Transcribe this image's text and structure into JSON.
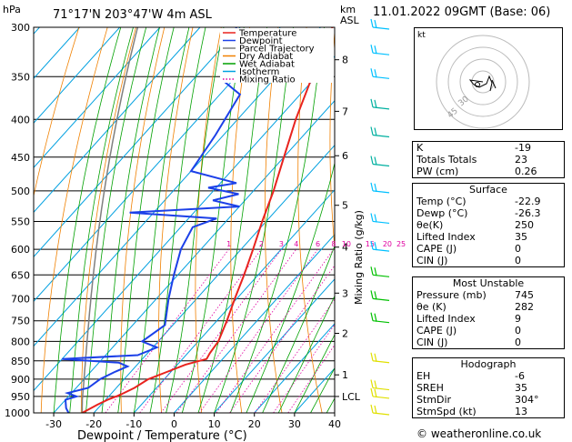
{
  "header": {
    "location": "71°17'N  203°47'W  4m  ASL",
    "datetime": "11.01.2022  09GMT  (Base: 06)"
  },
  "copyright": "© weatheronline.co.uk",
  "chart_data": {
    "type": "line",
    "xlabel": "Dewpoint / Temperature (°C)",
    "ylabel": "hPa",
    "right_axis_label": "Mixing Ratio (g/kg)",
    "km_label": "km",
    "km_label2": "ASL",
    "xlim": [
      -35,
      40
    ],
    "ylim": [
      1000,
      300
    ],
    "x_ticks": [
      -30,
      -20,
      -10,
      0,
      10,
      20,
      30,
      40
    ],
    "pressure_ticks": [
      300,
      350,
      400,
      450,
      500,
      550,
      600,
      650,
      700,
      750,
      800,
      850,
      900,
      950,
      1000
    ],
    "km_ticks": [
      {
        "label": "8",
        "p": 332
      },
      {
        "label": "7",
        "p": 390
      },
      {
        "label": "6",
        "p": 448
      },
      {
        "label": "5",
        "p": 523
      },
      {
        "label": "4",
        "p": 596
      },
      {
        "label": "3",
        "p": 688
      },
      {
        "label": "2",
        "p": 780
      },
      {
        "label": "1",
        "p": 888
      },
      {
        "label": "LCL",
        "p": 950
      }
    ],
    "mixing_ratio_labels": [
      "1",
      "2",
      "3",
      "4",
      "6",
      "8",
      "10",
      "15",
      "20",
      "25"
    ],
    "mixing_ratio_values": [
      1,
      2,
      3,
      4,
      6,
      8,
      10,
      15,
      20,
      25
    ],
    "legend": [
      {
        "name": "Temperature",
        "color": "#e8231e"
      },
      {
        "name": "Dewpoint",
        "color": "#1c40e8"
      },
      {
        "name": "Parcel Trajectory",
        "color": "#7f7f7f"
      },
      {
        "name": "Dry Adiabat",
        "color": "#f08000"
      },
      {
        "name": "Wet Adiabat",
        "color": "#00a000"
      },
      {
        "name": "Isotherm",
        "color": "#00a0e0"
      },
      {
        "name": "Mixing Ratio",
        "color": "#e000a0"
      }
    ],
    "temperature": [
      {
        "p": 1000,
        "t": -22.9
      },
      {
        "p": 975,
        "t": -21
      },
      {
        "p": 960,
        "t": -19.5
      },
      {
        "p": 945,
        "t": -17.5
      },
      {
        "p": 925,
        "t": -15.5
      },
      {
        "p": 900,
        "t": -14
      },
      {
        "p": 880,
        "t": -11
      },
      {
        "p": 860,
        "t": -8
      },
      {
        "p": 845,
        "t": -4
      },
      {
        "p": 830,
        "t": -4.5
      },
      {
        "p": 800,
        "t": -5
      },
      {
        "p": 750,
        "t": -7.5
      },
      {
        "p": 700,
        "t": -10.5
      },
      {
        "p": 650,
        "t": -13.5
      },
      {
        "p": 600,
        "t": -17
      },
      {
        "p": 550,
        "t": -21
      },
      {
        "p": 500,
        "t": -25
      },
      {
        "p": 450,
        "t": -30
      },
      {
        "p": 400,
        "t": -35.5
      },
      {
        "p": 350,
        "t": -41
      },
      {
        "p": 300,
        "t": -47
      }
    ],
    "dewpoint": [
      {
        "p": 1000,
        "t": -26.3
      },
      {
        "p": 985,
        "t": -28
      },
      {
        "p": 960,
        "t": -30
      },
      {
        "p": 950,
        "t": -28
      },
      {
        "p": 940,
        "t": -31
      },
      {
        "p": 925,
        "t": -27
      },
      {
        "p": 900,
        "t": -26
      },
      {
        "p": 880,
        "t": -24
      },
      {
        "p": 865,
        "t": -22
      },
      {
        "p": 855,
        "t": -25
      },
      {
        "p": 845,
        "t": -40
      },
      {
        "p": 835,
        "t": -22
      },
      {
        "p": 815,
        "t": -19
      },
      {
        "p": 800,
        "t": -24
      },
      {
        "p": 760,
        "t": -22
      },
      {
        "p": 700,
        "t": -27
      },
      {
        "p": 650,
        "t": -31
      },
      {
        "p": 600,
        "t": -35
      },
      {
        "p": 560,
        "t": -37
      },
      {
        "p": 545,
        "t": -33
      },
      {
        "p": 535,
        "t": -56
      },
      {
        "p": 525,
        "t": -30
      },
      {
        "p": 515,
        "t": -38
      },
      {
        "p": 505,
        "t": -33
      },
      {
        "p": 495,
        "t": -42
      },
      {
        "p": 488,
        "t": -36
      },
      {
        "p": 470,
        "t": -50
      },
      {
        "p": 420,
        "t": -52
      },
      {
        "p": 370,
        "t": -55
      },
      {
        "p": 355,
        "t": -62
      },
      {
        "p": 330,
        "t": -64
      },
      {
        "p": 300,
        "t": -71
      }
    ],
    "wind_barbs": [
      {
        "p": 300,
        "color": "#00c0ff"
      },
      {
        "p": 325,
        "color": "#00c0ff"
      },
      {
        "p": 350,
        "color": "#00c0ff"
      },
      {
        "p": 385,
        "color": "#00b0a0"
      },
      {
        "p": 420,
        "color": "#00b0a0"
      },
      {
        "p": 460,
        "color": "#00b0a0"
      },
      {
        "p": 500,
        "color": "#00c0ff"
      },
      {
        "p": 550,
        "color": "#00c0ff"
      },
      {
        "p": 600,
        "color": "#00c0ff"
      },
      {
        "p": 650,
        "color": "#00c000"
      },
      {
        "p": 700,
        "color": "#00c000"
      },
      {
        "p": 750,
        "color": "#00c000"
      },
      {
        "p": 850,
        "color": "#e0e000"
      },
      {
        "p": 925,
        "color": "#e0e000"
      },
      {
        "p": 950,
        "color": "#e0e000"
      },
      {
        "p": 1000,
        "color": "#e0e000"
      }
    ]
  },
  "hodograph": {
    "unit_label": "kt",
    "ring_labels": [
      "30",
      "45"
    ]
  },
  "indices": {
    "rows": [
      {
        "label": "K",
        "value": "-19"
      },
      {
        "label": "Totals Totals",
        "value": "23"
      },
      {
        "label": "PW (cm)",
        "value": "0.26"
      }
    ]
  },
  "surface": {
    "title": "Surface",
    "rows": [
      {
        "label": "Temp (°C)",
        "value": "-22.9"
      },
      {
        "label": "Dewp (°C)",
        "value": "-26.3"
      },
      {
        "label": "θe(K)",
        "value": "250"
      },
      {
        "label": "Lifted Index",
        "value": "35"
      },
      {
        "label": "CAPE (J)",
        "value": "0"
      },
      {
        "label": "CIN (J)",
        "value": "0"
      }
    ]
  },
  "most_unstable": {
    "title": "Most Unstable",
    "rows": [
      {
        "label": "Pressure (mb)",
        "value": "745"
      },
      {
        "label": "θe (K)",
        "value": "282"
      },
      {
        "label": "Lifted Index",
        "value": "9"
      },
      {
        "label": "CAPE (J)",
        "value": "0"
      },
      {
        "label": "CIN (J)",
        "value": "0"
      }
    ]
  },
  "hodograph_box": {
    "title": "Hodograph",
    "rows": [
      {
        "label": "EH",
        "value": "-6"
      },
      {
        "label": "SREH",
        "value": "35"
      },
      {
        "label": "StmDir",
        "value": "304°"
      },
      {
        "label": "StmSpd (kt)",
        "value": "13"
      }
    ]
  }
}
